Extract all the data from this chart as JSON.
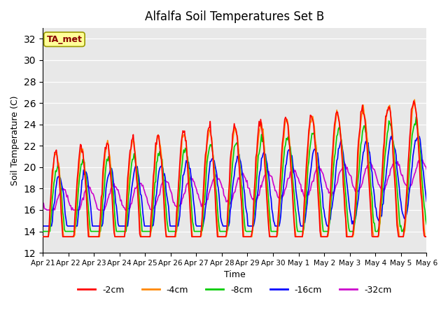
{
  "title": "Alfalfa Soil Temperatures Set B",
  "xlabel": "Time",
  "ylabel": "Soil Temperature (C)",
  "ylim": [
    12,
    33
  ],
  "yticks": [
    12,
    14,
    16,
    18,
    20,
    22,
    24,
    26,
    28,
    30,
    32
  ],
  "xtick_labels": [
    "Apr 21",
    "Apr 22",
    "Apr 23",
    "Apr 24",
    "Apr 25",
    "Apr 26",
    "Apr 27",
    "Apr 28",
    "Apr 29",
    "Apr 30",
    "May 1",
    "May 2",
    "May 3",
    "May 4",
    "May 5",
    "May 6"
  ],
  "colors": {
    "-2cm": "#ff0000",
    "-4cm": "#ff8800",
    "-8cm": "#00cc00",
    "-16cm": "#0000ff",
    "-32cm": "#cc00cc"
  },
  "legend_label": "TA_met",
  "legend_box_facecolor": "#ffff99",
  "legend_box_edgecolor": "#999900",
  "bg_color": "#e8e8e8",
  "n_points": 480,
  "line_width": 1.2
}
